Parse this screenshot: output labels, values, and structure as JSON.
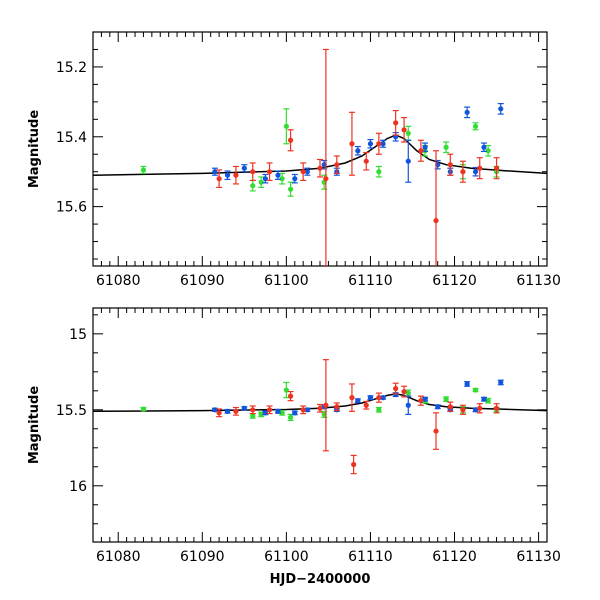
{
  "colors": {
    "green": "#33dd33",
    "red": "#ee3322",
    "blue": "#1155dd",
    "model": "#000000",
    "frame": "#000000"
  },
  "chart_data": [
    {
      "type": "scatter",
      "panel": "top",
      "title": "",
      "xlabel": "",
      "ylabel": "Magnitude",
      "xlim": [
        61077,
        61131
      ],
      "ylim": [
        15.77,
        15.1
      ],
      "xticks": [
        61080,
        61090,
        61100,
        61110,
        61120,
        61130
      ],
      "xtick_labels": [
        "61080",
        "61090",
        "61100",
        "61110",
        "61120",
        "61130"
      ],
      "yticks": [
        15.2,
        15.4,
        15.6
      ],
      "ytick_labels": [
        "15.2",
        "15.4",
        "15.6"
      ],
      "model": {
        "name": "model",
        "x": [
          61077,
          61090,
          61100,
          61104,
          61107,
          61109,
          61110.5,
          61112,
          61113,
          61114,
          61115.5,
          61117,
          61119,
          61122,
          61126,
          61131
        ],
        "y": [
          15.51,
          15.505,
          15.498,
          15.49,
          15.475,
          15.455,
          15.43,
          15.405,
          15.395,
          15.405,
          15.44,
          15.465,
          15.48,
          15.49,
          15.497,
          15.505
        ]
      },
      "series": [
        {
          "name": "green",
          "color": "#33dd33",
          "x": [
            61083,
            61096,
            61097,
            61099.5,
            61100,
            61100.5,
            61104.5,
            61111,
            61114.5,
            61116.5,
            61119,
            61121,
            61122.5,
            61124,
            61125
          ],
          "y": [
            15.495,
            15.54,
            15.53,
            15.52,
            15.37,
            15.55,
            15.53,
            15.5,
            15.39,
            15.44,
            15.43,
            15.5,
            15.37,
            15.44,
            15.5
          ],
          "err": [
            0.01,
            0.015,
            0.015,
            0.015,
            0.05,
            0.02,
            0.02,
            0.015,
            0.02,
            0.015,
            0.015,
            0.02,
            0.01,
            0.015,
            0.015
          ]
        },
        {
          "name": "blue",
          "color": "#1155dd",
          "x": [
            61091.5,
            61093,
            61095,
            61097.5,
            61099,
            61101,
            61102.5,
            61104.5,
            61106,
            61108.5,
            61110,
            61111.5,
            61113,
            61114.5,
            61116.5,
            61118,
            61119.5,
            61121.5,
            61122.5,
            61123.5,
            61125.5
          ],
          "y": [
            15.5,
            15.51,
            15.49,
            15.52,
            15.51,
            15.52,
            15.5,
            15.48,
            15.5,
            15.44,
            15.42,
            15.42,
            15.4,
            15.47,
            15.43,
            15.48,
            15.5,
            15.33,
            15.5,
            15.43,
            15.32
          ],
          "err": [
            0.01,
            0.012,
            0.01,
            0.012,
            0.012,
            0.012,
            0.01,
            0.012,
            0.01,
            0.012,
            0.012,
            0.01,
            0.012,
            0.06,
            0.012,
            0.012,
            0.01,
            0.015,
            0.012,
            0.012,
            0.015
          ]
        },
        {
          "name": "red",
          "color": "#ee3322",
          "x": [
            61092,
            61094,
            61096,
            61098,
            61100.5,
            61102,
            61104,
            61104.7,
            61106,
            61107.8,
            61109.5,
            61111,
            61113,
            61114,
            61116,
            61117.8,
            61119.5,
            61121,
            61123,
            61125
          ],
          "y": [
            15.52,
            15.51,
            15.5,
            15.5,
            15.41,
            15.5,
            15.49,
            15.52,
            15.48,
            15.42,
            15.47,
            15.42,
            15.36,
            15.38,
            15.44,
            15.64,
            15.48,
            15.5,
            15.49,
            15.49
          ],
          "err": [
            0.025,
            0.025,
            0.025,
            0.025,
            0.03,
            0.025,
            0.025,
            0.37,
            0.025,
            0.09,
            0.025,
            0.03,
            0.035,
            0.035,
            0.03,
            0.2,
            0.03,
            0.03,
            0.03,
            0.03
          ]
        }
      ]
    },
    {
      "type": "scatter",
      "panel": "bottom",
      "title": "",
      "xlabel": "HJD−2400000",
      "ylabel": "Magnitude",
      "xlim": [
        61077,
        61131
      ],
      "ylim": [
        16.37,
        14.83
      ],
      "xticks": [
        61080,
        61090,
        61100,
        61110,
        61120,
        61130
      ],
      "xtick_labels": [
        "61080",
        "61090",
        "61100",
        "61110",
        "61120",
        "61130"
      ],
      "yticks": [
        15.0,
        15.5,
        16.0
      ],
      "ytick_labels": [
        "15",
        "15.5",
        "16"
      ],
      "model": {
        "name": "model",
        "x": [
          61077,
          61090,
          61100,
          61104,
          61107,
          61109,
          61110.5,
          61112,
          61113,
          61114,
          61115.5,
          61117,
          61119,
          61122,
          61126,
          61131
        ],
        "y": [
          15.51,
          15.505,
          15.498,
          15.49,
          15.475,
          15.455,
          15.43,
          15.405,
          15.395,
          15.405,
          15.44,
          15.465,
          15.48,
          15.49,
          15.497,
          15.505
        ]
      },
      "series": [
        {
          "name": "green",
          "color": "#33dd33",
          "x": [
            61083,
            61096,
            61097,
            61099.5,
            61100,
            61100.5,
            61104.5,
            61111,
            61114.5,
            61116.5,
            61119,
            61121,
            61122.5,
            61124,
            61125
          ],
          "y": [
            15.495,
            15.54,
            15.53,
            15.52,
            15.37,
            15.55,
            15.53,
            15.5,
            15.39,
            15.44,
            15.43,
            15.5,
            15.37,
            15.44,
            15.5
          ],
          "err": [
            0.01,
            0.015,
            0.015,
            0.015,
            0.05,
            0.02,
            0.02,
            0.015,
            0.02,
            0.015,
            0.015,
            0.02,
            0.01,
            0.015,
            0.015
          ]
        },
        {
          "name": "blue",
          "color": "#1155dd",
          "x": [
            61091.5,
            61093,
            61095,
            61097.5,
            61099,
            61101,
            61102.5,
            61104.5,
            61106,
            61108.5,
            61110,
            61111.5,
            61113,
            61114.5,
            61116.5,
            61118,
            61119.5,
            61121.5,
            61122.5,
            61123.5,
            61125.5
          ],
          "y": [
            15.5,
            15.51,
            15.49,
            15.52,
            15.51,
            15.52,
            15.5,
            15.48,
            15.5,
            15.44,
            15.42,
            15.42,
            15.4,
            15.47,
            15.43,
            15.48,
            15.5,
            15.33,
            15.5,
            15.43,
            15.32
          ],
          "err": [
            0.01,
            0.012,
            0.01,
            0.012,
            0.012,
            0.012,
            0.01,
            0.012,
            0.01,
            0.012,
            0.012,
            0.01,
            0.012,
            0.06,
            0.012,
            0.012,
            0.01,
            0.015,
            0.012,
            0.012,
            0.015
          ]
        },
        {
          "name": "red",
          "color": "#ee3322",
          "x": [
            61092,
            61094,
            61096,
            61098,
            61100.5,
            61102,
            61104,
            61104.7,
            61106,
            61107.8,
            61108,
            61109.5,
            61111,
            61113,
            61114,
            61116,
            61117.8,
            61119.5,
            61121,
            61123,
            61125
          ],
          "y": [
            15.52,
            15.51,
            15.5,
            15.5,
            15.41,
            15.5,
            15.49,
            15.47,
            15.48,
            15.42,
            15.86,
            15.47,
            15.42,
            15.36,
            15.38,
            15.44,
            15.64,
            15.48,
            15.5,
            15.49,
            15.49
          ],
          "err": [
            0.025,
            0.025,
            0.025,
            0.025,
            0.03,
            0.025,
            0.025,
            0.3,
            0.025,
            0.09,
            0.06,
            0.025,
            0.03,
            0.035,
            0.035,
            0.03,
            0.12,
            0.03,
            0.03,
            0.03,
            0.03
          ]
        }
      ]
    }
  ]
}
